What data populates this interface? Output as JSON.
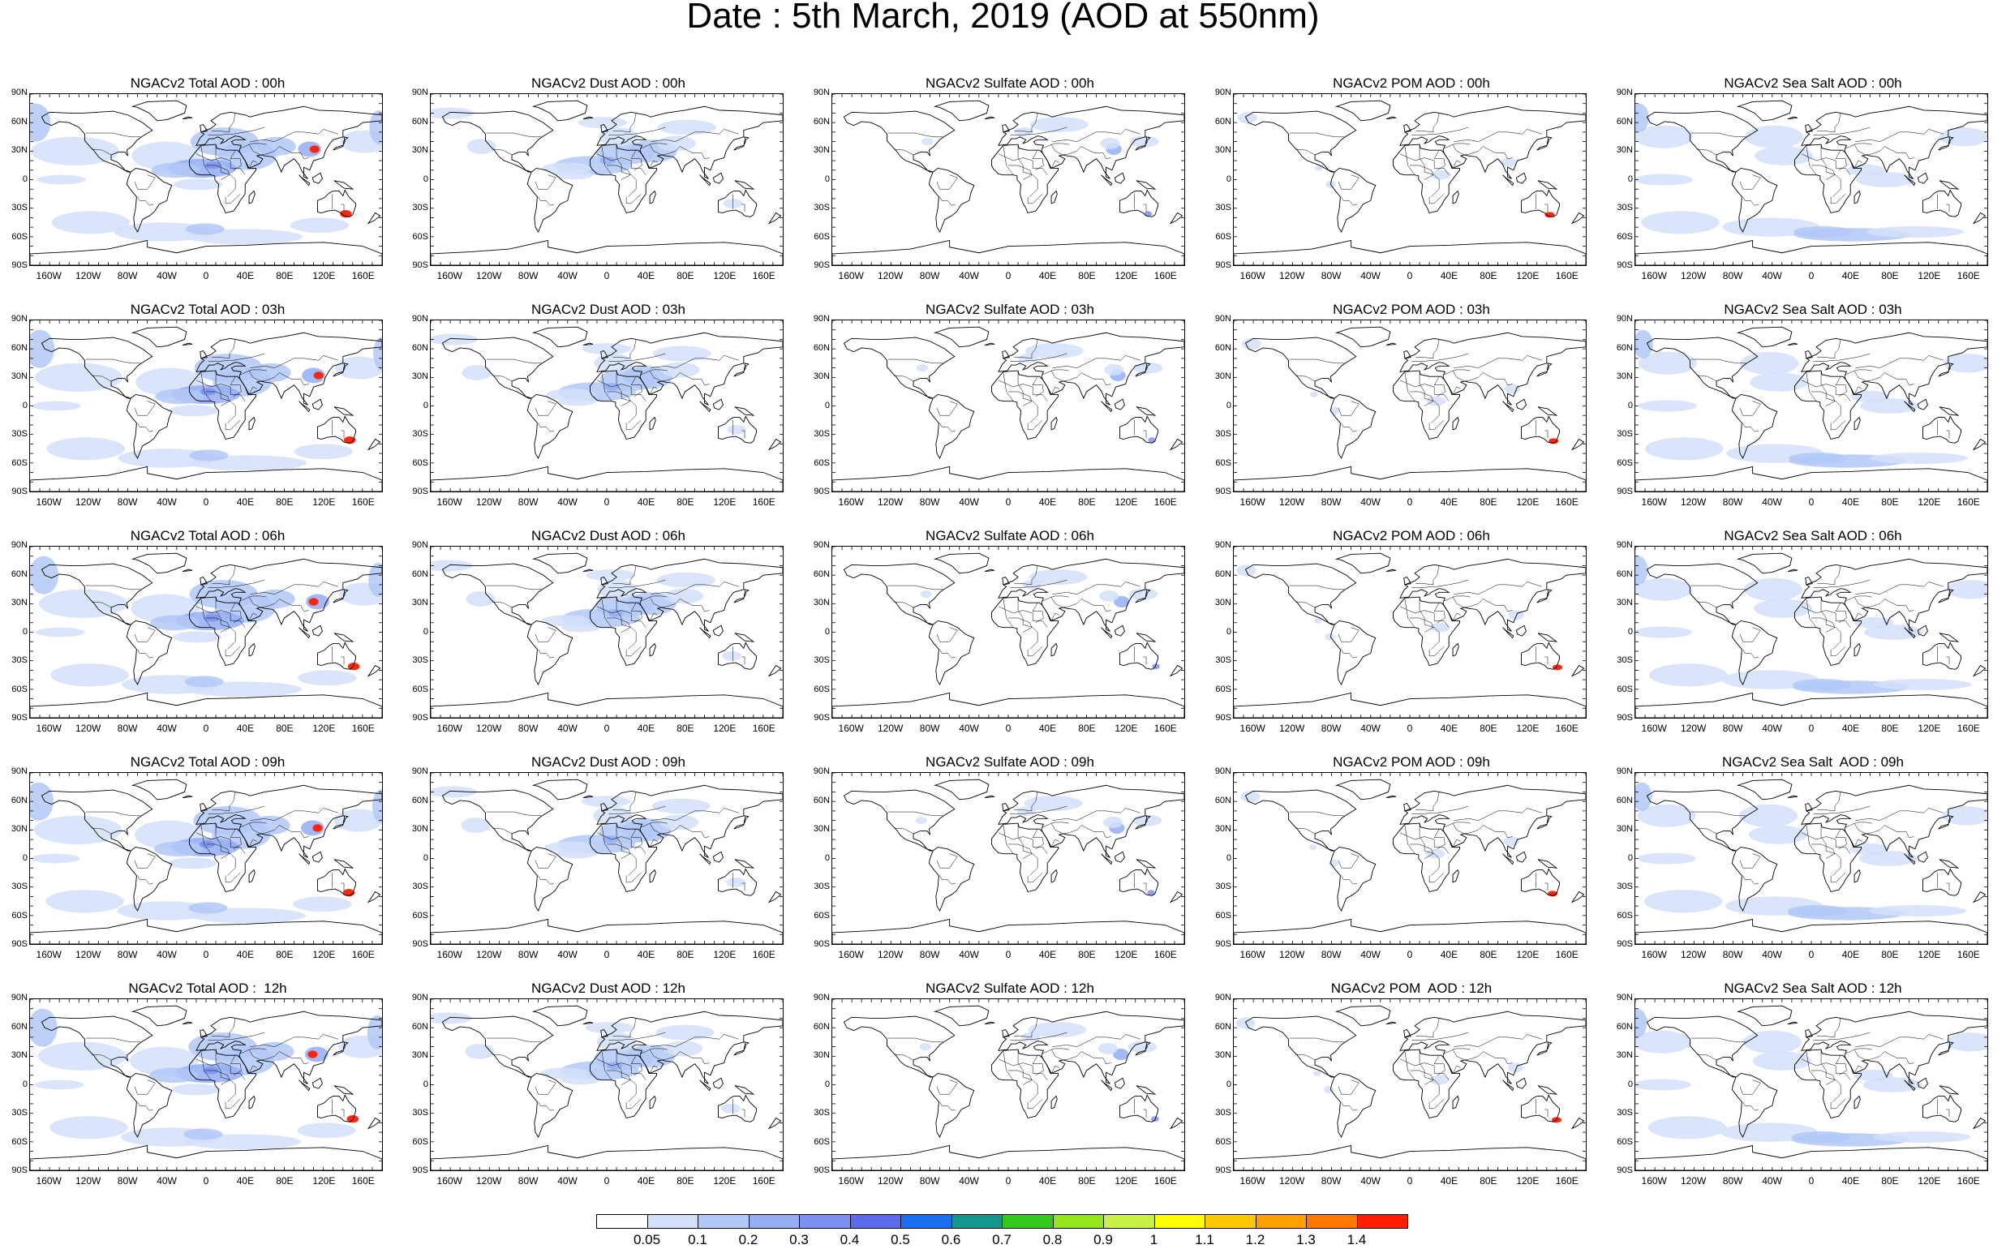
{
  "title": "Date : 5th March, 2019 (AOD at 550nm)",
  "lat_ticks": [
    "90N",
    "60N",
    "30N",
    "0",
    "30S",
    "60S",
    "90S"
  ],
  "lon_ticks": [
    "160W",
    "120W",
    "80W",
    "40W",
    "0",
    "40E",
    "80E",
    "120E",
    "160E"
  ],
  "columns": [
    {
      "key": "total",
      "titles": [
        "NGACv2 Total AOD : 00h",
        "NGACv2 Total AOD : 03h",
        "NGACv2 Total AOD : 06h",
        "NGACv2 Total AOD : 09h",
        "NGACv2 Total AOD :  12h"
      ]
    },
    {
      "key": "dust",
      "titles": [
        "NGACv2 Dust AOD : 00h",
        "NGACv2 Dust AOD : 03h",
        "NGACv2 Dust AOD : 06h",
        "NGACv2 Dust AOD : 09h",
        "NGACv2 Dust AOD : 12h"
      ]
    },
    {
      "key": "sulfate",
      "titles": [
        "NGACv2 Sulfate AOD : 00h",
        "NGACv2 Sulfate AOD : 03h",
        "NGACv2 Sulfate AOD : 06h",
        "NGACv2 Sulfate AOD : 09h",
        "NGACv2 Sulfate AOD : 12h"
      ]
    },
    {
      "key": "pom",
      "titles": [
        "NGACv2 POM AOD : 00h",
        "NGACv2 POM AOD : 03h",
        "NGACv2 POM AOD : 06h",
        "NGACv2 POM AOD : 09h",
        "NGACv2 POM  AOD : 12h"
      ]
    },
    {
      "key": "seasalt",
      "titles": [
        "NGACv2 Sea Salt AOD : 00h",
        "NGACv2 Sea Salt AOD : 03h",
        "NGACv2 Sea Salt AOD : 06h",
        "NGACv2 Sea Salt  AOD : 09h",
        "NGACv2 Sea Salt AOD : 12h"
      ]
    }
  ],
  "colorbar": {
    "labels": [
      "0.05",
      "0.1",
      "0.2",
      "0.3",
      "0.4",
      "0.5",
      "0.6",
      "0.7",
      "0.8",
      "0.9",
      "1",
      "1.1",
      "1.2",
      "1.3",
      "1.4"
    ],
    "colors": [
      "#ffffff",
      "#d4e0fa",
      "#b2c8f7",
      "#94aef4",
      "#7f91f0",
      "#5d6cec",
      "#1a6ff0",
      "#16978e",
      "#34c81e",
      "#96e61e",
      "#c8f046",
      "#ffff00",
      "#ffc800",
      "#ffa000",
      "#ff7800",
      "#ff1e00"
    ]
  }
}
